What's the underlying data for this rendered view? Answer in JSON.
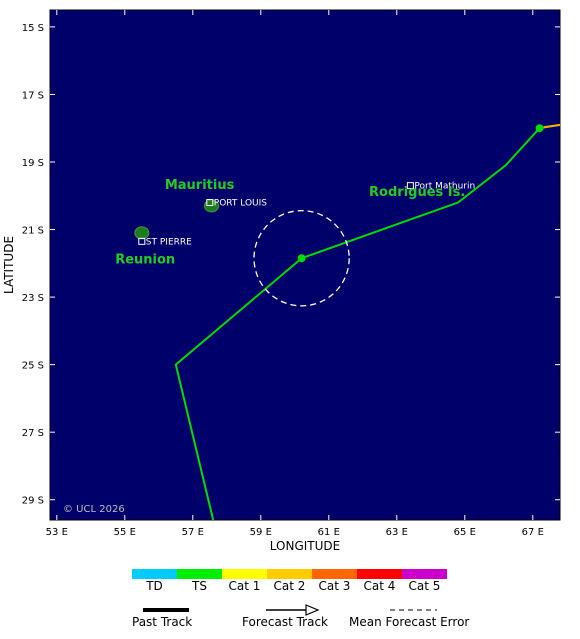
{
  "map": {
    "axes": {
      "xlabel": "LONGITUDE",
      "ylabel": "LATITUDE",
      "lon_range": [
        52.8,
        67.8
      ],
      "lat_range": [
        -14.5,
        -29.6
      ],
      "lon_ticks": [
        {
          "value": 53,
          "label": "53 E"
        },
        {
          "value": 55,
          "label": "55 E"
        },
        {
          "value": 57,
          "label": "57 E"
        },
        {
          "value": 59,
          "label": "59 E"
        },
        {
          "value": 61,
          "label": "61 E"
        },
        {
          "value": 63,
          "label": "63 E"
        },
        {
          "value": 65,
          "label": "65 E"
        },
        {
          "value": 67,
          "label": "67 E"
        }
      ],
      "lat_ticks": [
        {
          "value": -15,
          "label": "15 S"
        },
        {
          "value": -17,
          "label": "17 S"
        },
        {
          "value": -19,
          "label": "19 S"
        },
        {
          "value": -21,
          "label": "21 S"
        },
        {
          "value": -23,
          "label": "23 S"
        },
        {
          "value": -25,
          "label": "25 S"
        },
        {
          "value": -27,
          "label": "27 S"
        },
        {
          "value": -29,
          "label": "29 S"
        }
      ]
    },
    "colors": {
      "ocean": "#00006b",
      "land": "#1f7a1f",
      "track_ts": "#00dd00",
      "label_green": "#22cc22",
      "error_circle": "#ffffff",
      "orange_segment": "#ffaa00"
    },
    "places": [
      {
        "name": "Mauritius",
        "lon": 57.2,
        "lat": -19.8,
        "style": "big"
      },
      {
        "name": "Reunion",
        "lon": 55.6,
        "lat": -22.0,
        "style": "big"
      },
      {
        "name": "Rodrigues Is.",
        "lon": 63.6,
        "lat": -20.0,
        "style": "big"
      }
    ],
    "stations": [
      {
        "name": "PORT LOUIS",
        "lon": 57.5,
        "lat": -20.2
      },
      {
        "name": "ST PIERRE",
        "lon": 55.5,
        "lat": -21.35
      },
      {
        "name": "Port Mathurin",
        "lon": 63.4,
        "lat": -19.7
      }
    ],
    "islands": [
      {
        "name": "mauritius-island",
        "lon": 57.55,
        "lat": -20.3
      },
      {
        "name": "reunion-island",
        "lon": 55.5,
        "lat": -21.1
      }
    ],
    "track": {
      "category": "TS",
      "points": [
        {
          "lon": 67.8,
          "lat": -17.9
        },
        {
          "lon": 67.2,
          "lat": -18.0
        },
        {
          "lon": 66.2,
          "lat": -19.1
        },
        {
          "lon": 64.8,
          "lat": -20.2
        },
        {
          "lon": 60.2,
          "lat": -21.85
        },
        {
          "lon": 56.5,
          "lat": -25.0
        },
        {
          "lon": 57.6,
          "lat": -29.6
        }
      ],
      "markers": [
        {
          "lon": 67.2,
          "lat": -18.0
        },
        {
          "lon": 60.2,
          "lat": -21.85
        }
      ],
      "error_circle": {
        "lon": 60.2,
        "lat": -21.85,
        "radius_deg": 1.4
      }
    },
    "copyright": "© UCL 2026"
  },
  "legend": {
    "categories": [
      {
        "label": "TD",
        "color": "#00ccff"
      },
      {
        "label": "TS",
        "color": "#00ee00"
      },
      {
        "label": "Cat 1",
        "color": "#ffff00"
      },
      {
        "label": "Cat 2",
        "color": "#ffcc00"
      },
      {
        "label": "Cat 3",
        "color": "#ff6600"
      },
      {
        "label": "Cat 4",
        "color": "#ff0000"
      },
      {
        "label": "Cat 5",
        "color": "#cc00cc"
      }
    ],
    "past_track": "Past Track",
    "forecast_track": "Forecast Track",
    "mean_error": "Mean Forecast Error"
  }
}
